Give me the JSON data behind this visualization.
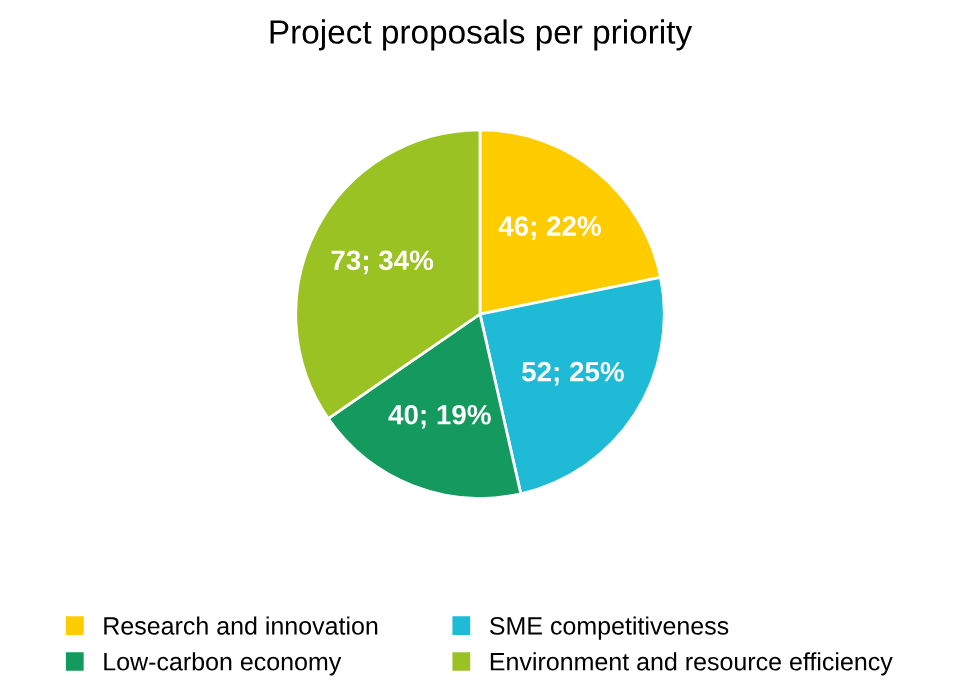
{
  "chart_data": {
    "type": "pie",
    "title": "Project proposals per priority",
    "categories": [
      "Research and innovation",
      "SME competitiveness",
      "Low-carbon economy",
      "Environment and resource efficiency"
    ],
    "values": [
      46,
      52,
      40,
      73
    ],
    "value_labels": [
      "46; 22%",
      "52; 25%",
      "40; 19%",
      "73; 34%"
    ],
    "colors": [
      "#ffcc00",
      "#1fbad6",
      "#149a5e",
      "#99c222"
    ],
    "legend": "bottom"
  }
}
